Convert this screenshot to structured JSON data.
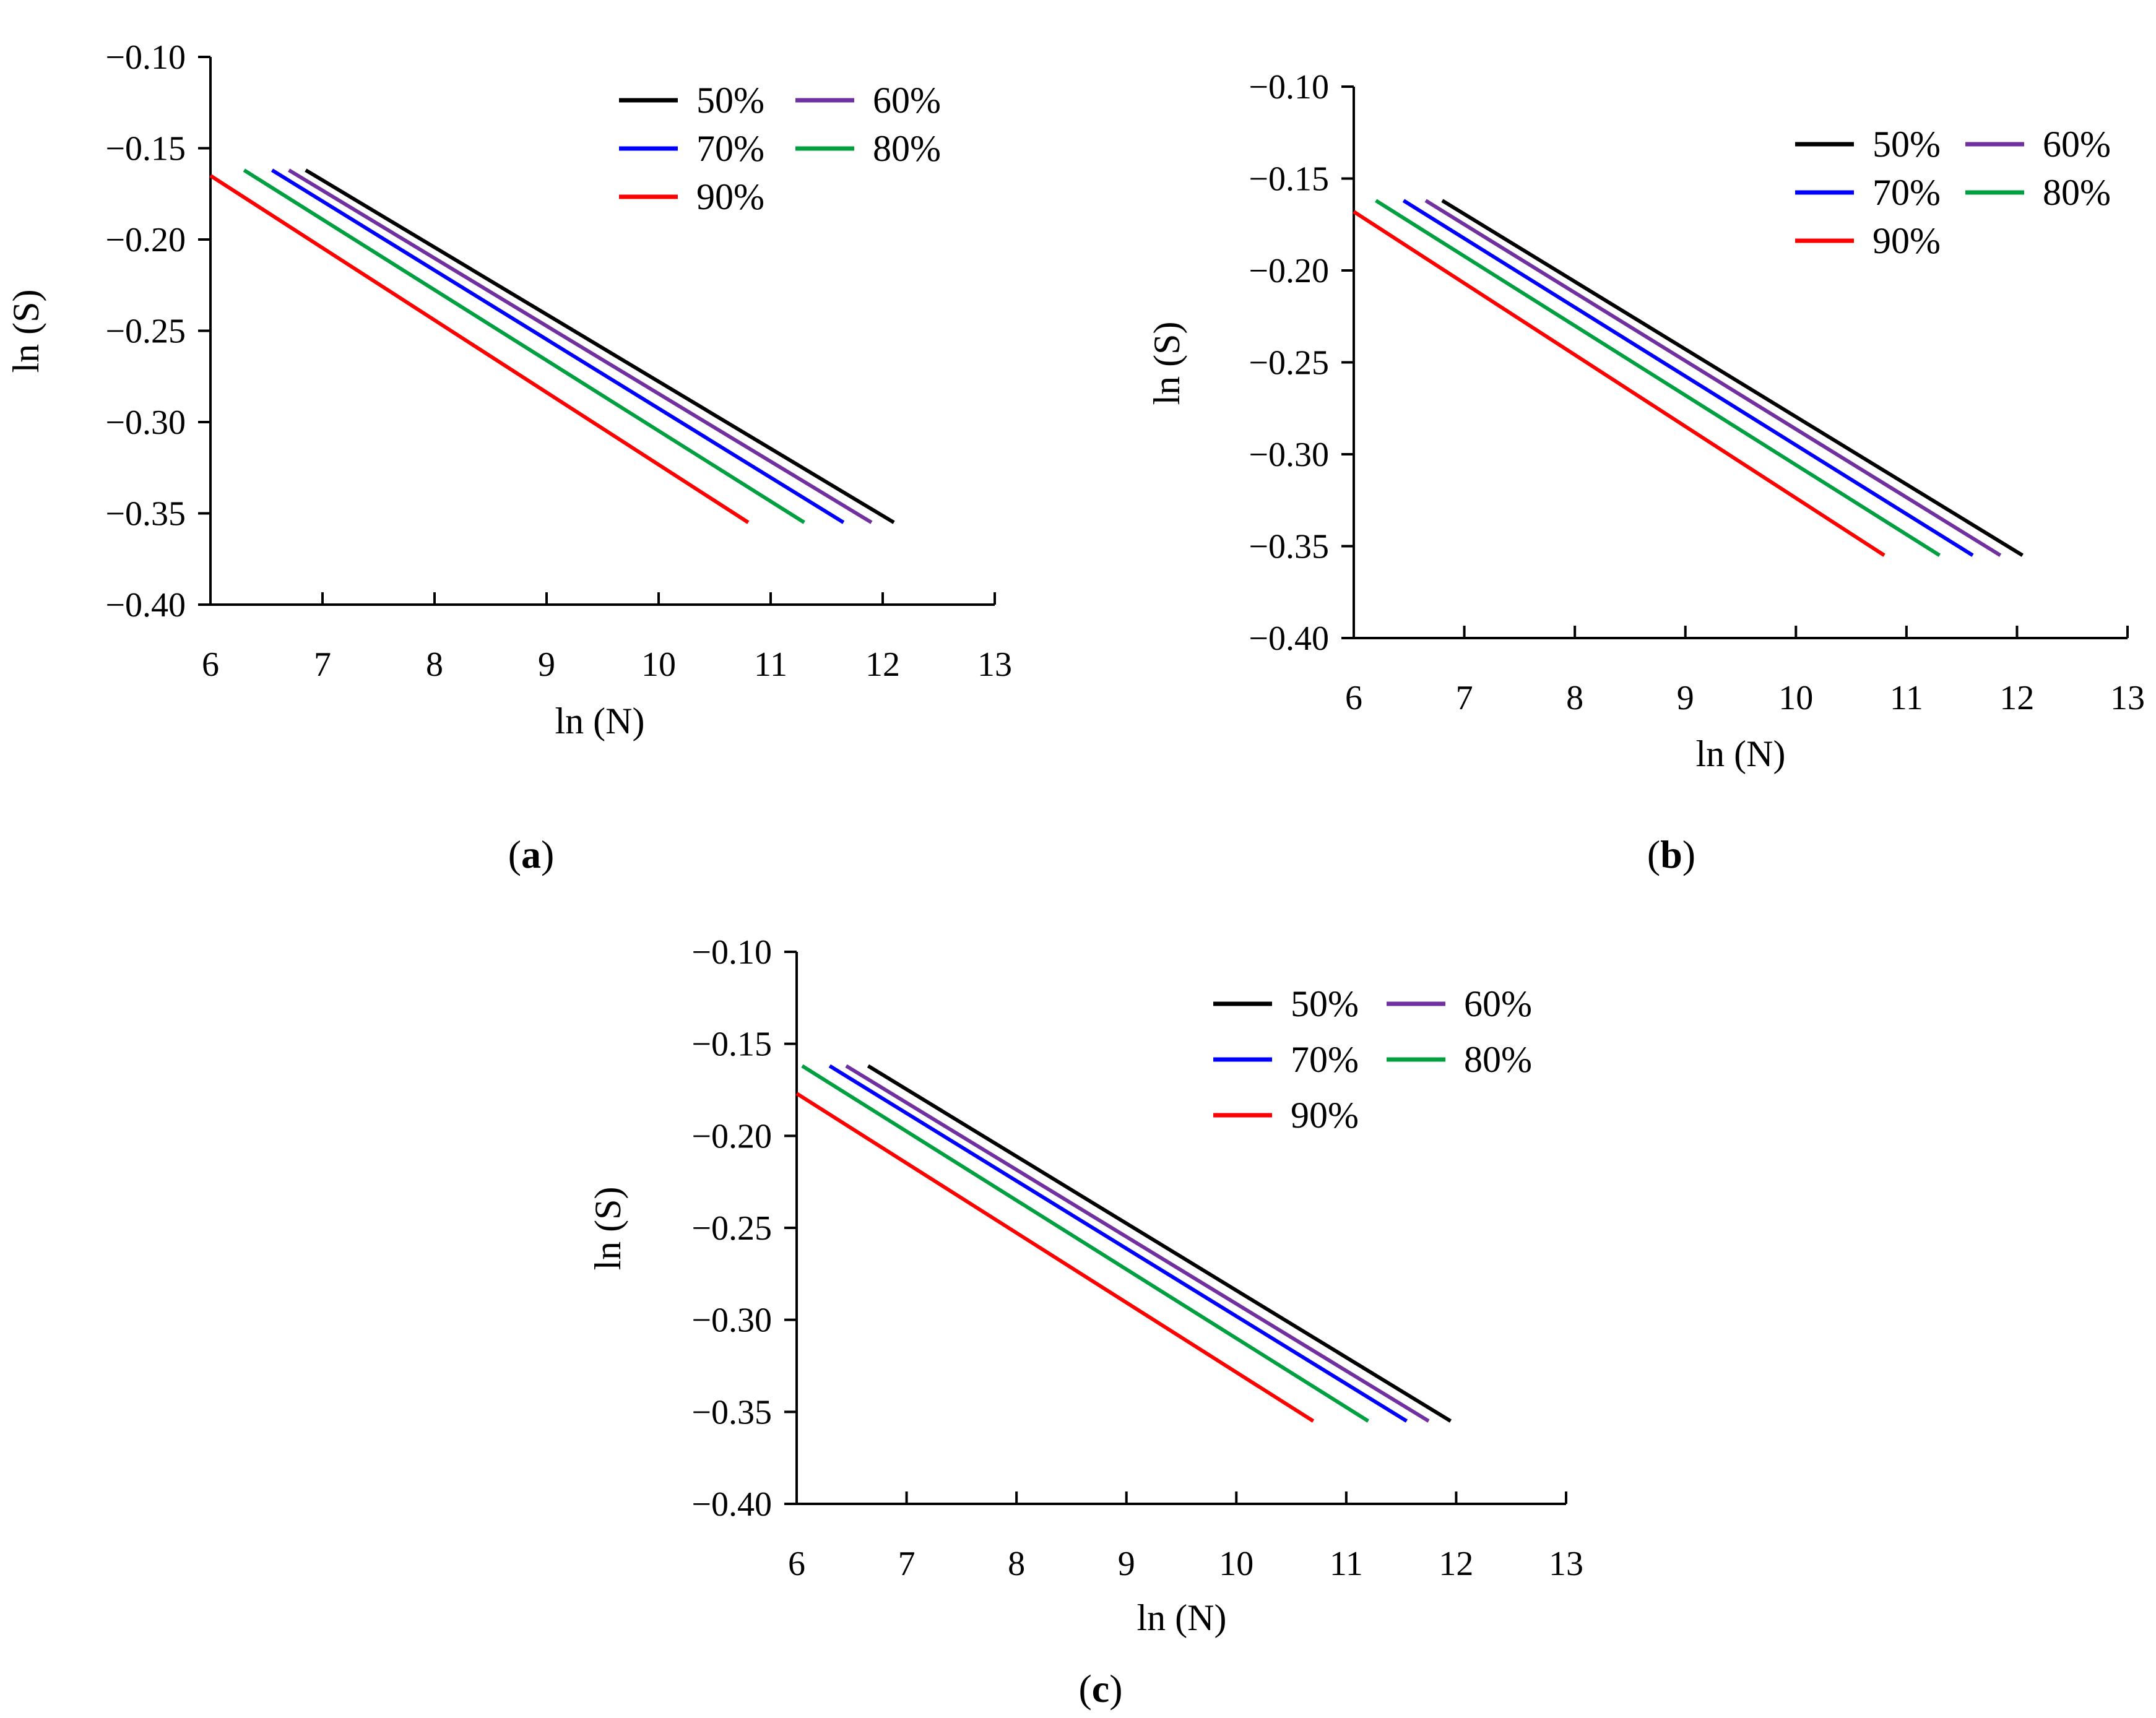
{
  "figure": {
    "panels": [
      {
        "id": "a",
        "label_open": "(",
        "label_letter": "a",
        "label_close": ")"
      },
      {
        "id": "b",
        "label_open": "(",
        "label_letter": "b",
        "label_close": ")"
      },
      {
        "id": "c",
        "label_open": "(",
        "label_letter": "c",
        "label_close": ")"
      }
    ]
  },
  "chart_data": [
    {
      "type": "line",
      "panel": "a",
      "xlabel": "ln (N)",
      "ylabel": "ln (S)",
      "xlim": [
        6,
        13
      ],
      "ylim": [
        -0.4,
        -0.1
      ],
      "xticks": [
        "6",
        "7",
        "8",
        "9",
        "10",
        "11",
        "12",
        "13"
      ],
      "yticks": [
        "−0.10",
        "−0.15",
        "−0.20",
        "−0.25",
        "−0.30",
        "−0.35",
        "−0.40"
      ],
      "legend_position": "top-right",
      "series": [
        {
          "name": "50%",
          "color": "#000000",
          "x": [
            6.85,
            12.1
          ],
          "y": [
            -0.162,
            -0.355
          ]
        },
        {
          "name": "60%",
          "color": "#7030a0",
          "x": [
            6.7,
            11.9
          ],
          "y": [
            -0.162,
            -0.355
          ]
        },
        {
          "name": "70%",
          "color": "#0000ff",
          "x": [
            6.55,
            11.65
          ],
          "y": [
            -0.162,
            -0.355
          ]
        },
        {
          "name": "80%",
          "color": "#00a040",
          "x": [
            6.3,
            11.3
          ],
          "y": [
            -0.162,
            -0.355
          ]
        },
        {
          "name": "90%",
          "color": "#ff0000",
          "x": [
            6.0,
            10.8
          ],
          "y": [
            -0.165,
            -0.355
          ]
        }
      ]
    },
    {
      "type": "line",
      "panel": "b",
      "xlabel": "ln (N)",
      "ylabel": "ln (S)",
      "xlim": [
        6,
        13
      ],
      "ylim": [
        -0.4,
        -0.1
      ],
      "xticks": [
        "6",
        "7",
        "8",
        "9",
        "10",
        "11",
        "12",
        "13"
      ],
      "yticks": [
        "−0.10",
        "−0.15",
        "−0.20",
        "−0.25",
        "−0.30",
        "−0.35",
        "−0.40"
      ],
      "legend_position": "top-right",
      "series": [
        {
          "name": "50%",
          "color": "#000000",
          "x": [
            6.8,
            12.05
          ],
          "y": [
            -0.162,
            -0.355
          ]
        },
        {
          "name": "60%",
          "color": "#7030a0",
          "x": [
            6.65,
            11.85
          ],
          "y": [
            -0.162,
            -0.355
          ]
        },
        {
          "name": "70%",
          "color": "#0000ff",
          "x": [
            6.45,
            11.6
          ],
          "y": [
            -0.162,
            -0.355
          ]
        },
        {
          "name": "80%",
          "color": "#00a040",
          "x": [
            6.2,
            11.3
          ],
          "y": [
            -0.162,
            -0.355
          ]
        },
        {
          "name": "90%",
          "color": "#ff0000",
          "x": [
            6.0,
            10.8
          ],
          "y": [
            -0.168,
            -0.355
          ]
        }
      ]
    },
    {
      "type": "line",
      "panel": "c",
      "xlabel": "ln (N)",
      "ylabel": "ln (S)",
      "xlim": [
        6,
        13
      ],
      "ylim": [
        -0.4,
        -0.1
      ],
      "xticks": [
        "6",
        "7",
        "8",
        "9",
        "10",
        "11",
        "12",
        "13"
      ],
      "yticks": [
        "−0.10",
        "−0.15",
        "−0.20",
        "−0.25",
        "−0.30",
        "−0.35",
        "−0.40"
      ],
      "legend_position": "top-right",
      "series": [
        {
          "name": "50%",
          "color": "#000000",
          "x": [
            6.65,
            11.95
          ],
          "y": [
            -0.162,
            -0.355
          ]
        },
        {
          "name": "60%",
          "color": "#7030a0",
          "x": [
            6.45,
            11.75
          ],
          "y": [
            -0.162,
            -0.355
          ]
        },
        {
          "name": "70%",
          "color": "#0000ff",
          "x": [
            6.3,
            11.55
          ],
          "y": [
            -0.162,
            -0.355
          ]
        },
        {
          "name": "80%",
          "color": "#00a040",
          "x": [
            6.05,
            11.2
          ],
          "y": [
            -0.162,
            -0.355
          ]
        },
        {
          "name": "90%",
          "color": "#ff0000",
          "x": [
            6.0,
            10.7
          ],
          "y": [
            -0.177,
            -0.355
          ]
        }
      ]
    }
  ]
}
